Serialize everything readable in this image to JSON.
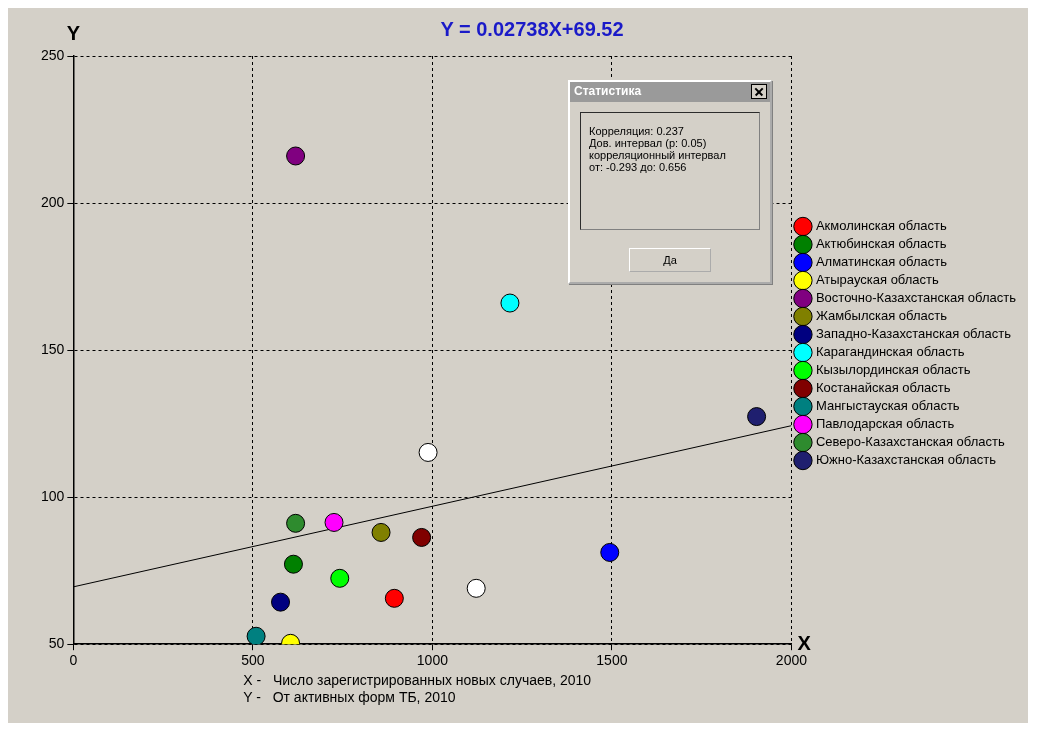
{
  "chart_data": {
    "type": "scatter",
    "title": "Y = 0.02738X+69.52",
    "xlabel": "X",
    "ylabel": "Y",
    "annotations": [
      "Статистика",
      "Корреляция: 0.237",
      "Дов. интервал (p: 0.05)",
      "корреляционный интервал",
      "от: -0.293 до: 0.656",
      "Да",
      "X -   Число зарегистрированных новых случаев, 2010",
      "Y -   От активных форм ТБ, 2010"
    ],
    "xlim": [
      0,
      2000
    ],
    "xticks": [
      0,
      500,
      1000,
      1500,
      2000
    ],
    "ylim": [
      50,
      250
    ],
    "yticks": [
      50,
      100,
      150,
      200,
      250
    ],
    "grid": true,
    "legend": "right",
    "marker": "circle",
    "series": [
      {
        "name": "Акмолинская область",
        "color": "#ff0000",
        "x": [
          894
        ],
        "values": [
          65.6
        ]
      },
      {
        "name": "Актюбинская область",
        "color": "#008000",
        "x": [
          613
        ],
        "values": [
          77.2
        ]
      },
      {
        "name": "Алматинская область",
        "color": "#0000ff",
        "x": [
          1494
        ],
        "values": [
          81.2
        ]
      },
      {
        "name": "Атырауская область",
        "color": "#ffff00",
        "x": [
          605
        ],
        "values": [
          50.3
        ]
      },
      {
        "name": "Восточно-Казахстанская область",
        "color": "#800080",
        "x": [
          619
        ],
        "values": [
          216
        ]
      },
      {
        "name": "Жамбылская область",
        "color": "#808000",
        "x": [
          857
        ],
        "values": [
          88
        ]
      },
      {
        "name": "Западно-Казахстанская область",
        "color": "#000080",
        "x": [
          577
        ],
        "values": [
          64.3
        ]
      },
      {
        "name": "Карагандинская область",
        "color": "#00ffff",
        "x": [
          1216
        ],
        "values": [
          166
        ]
      },
      {
        "name": "Кызылординская область",
        "color": "#00ff00",
        "x": [
          742
        ],
        "values": [
          72.4
        ]
      },
      {
        "name": "Костанайская область",
        "color": "#800000",
        "x": [
          970
        ],
        "values": [
          86.3
        ]
      },
      {
        "name": "Мангыстауская область",
        "color": "#008080",
        "x": [
          509
        ],
        "values": [
          52.7
        ]
      },
      {
        "name": "Павлодарская область",
        "color": "#ff00ff",
        "x": [
          726
        ],
        "values": [
          91.4
        ]
      },
      {
        "name": "Северо-Казахстанская область",
        "color": "#2e8b2e",
        "x": [
          619
        ],
        "values": [
          91.1
        ]
      },
      {
        "name": "Южно-Казахстанская область",
        "color": "#1f1f6f",
        "x": [
          1903
        ],
        "values": [
          127.4
        ]
      },
      {
        "color": "#ffffff",
        "x": [
          988,
          1122
        ],
        "values": [
          115.2,
          69
        ]
      },
      {
        "type": "line",
        "color": "#000000",
        "marker": "none",
        "x": [
          0,
          2000
        ],
        "values": [
          69.5,
          124.3
        ]
      }
    ]
  }
}
